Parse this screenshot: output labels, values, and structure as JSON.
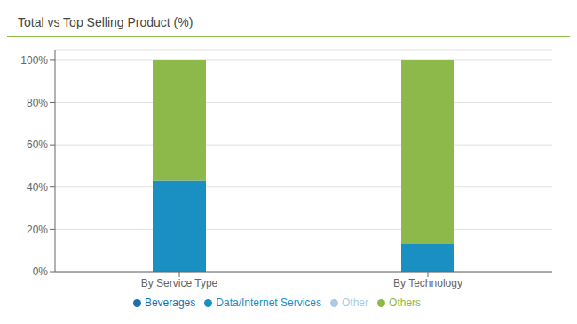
{
  "chart_data": {
    "type": "bar",
    "title": "Total vs Top Selling Product (%)",
    "categories": [
      "By Service Type",
      "By Technology"
    ],
    "series": [
      {
        "name": "Beverages",
        "color": "#1a6faf",
        "values": [
          0,
          0
        ]
      },
      {
        "name": "Data/Internet Services",
        "color": "#1a8fc1",
        "values": [
          43,
          13
        ]
      },
      {
        "name": "Other",
        "color": "#a9cce3",
        "values": [
          0,
          0
        ]
      },
      {
        "name": "Others",
        "color": "#8db84a",
        "values": [
          57,
          87
        ]
      }
    ],
    "stacked": true,
    "ylim": [
      0,
      105
    ],
    "yticks": [
      {
        "value": 0,
        "label": "0%"
      },
      {
        "value": 20,
        "label": "20%"
      },
      {
        "value": 40,
        "label": "40%"
      },
      {
        "value": 60,
        "label": "60%"
      },
      {
        "value": 80,
        "label": "80%"
      },
      {
        "value": 100,
        "label": "100%"
      }
    ],
    "grid": true,
    "legend": "bottom"
  }
}
